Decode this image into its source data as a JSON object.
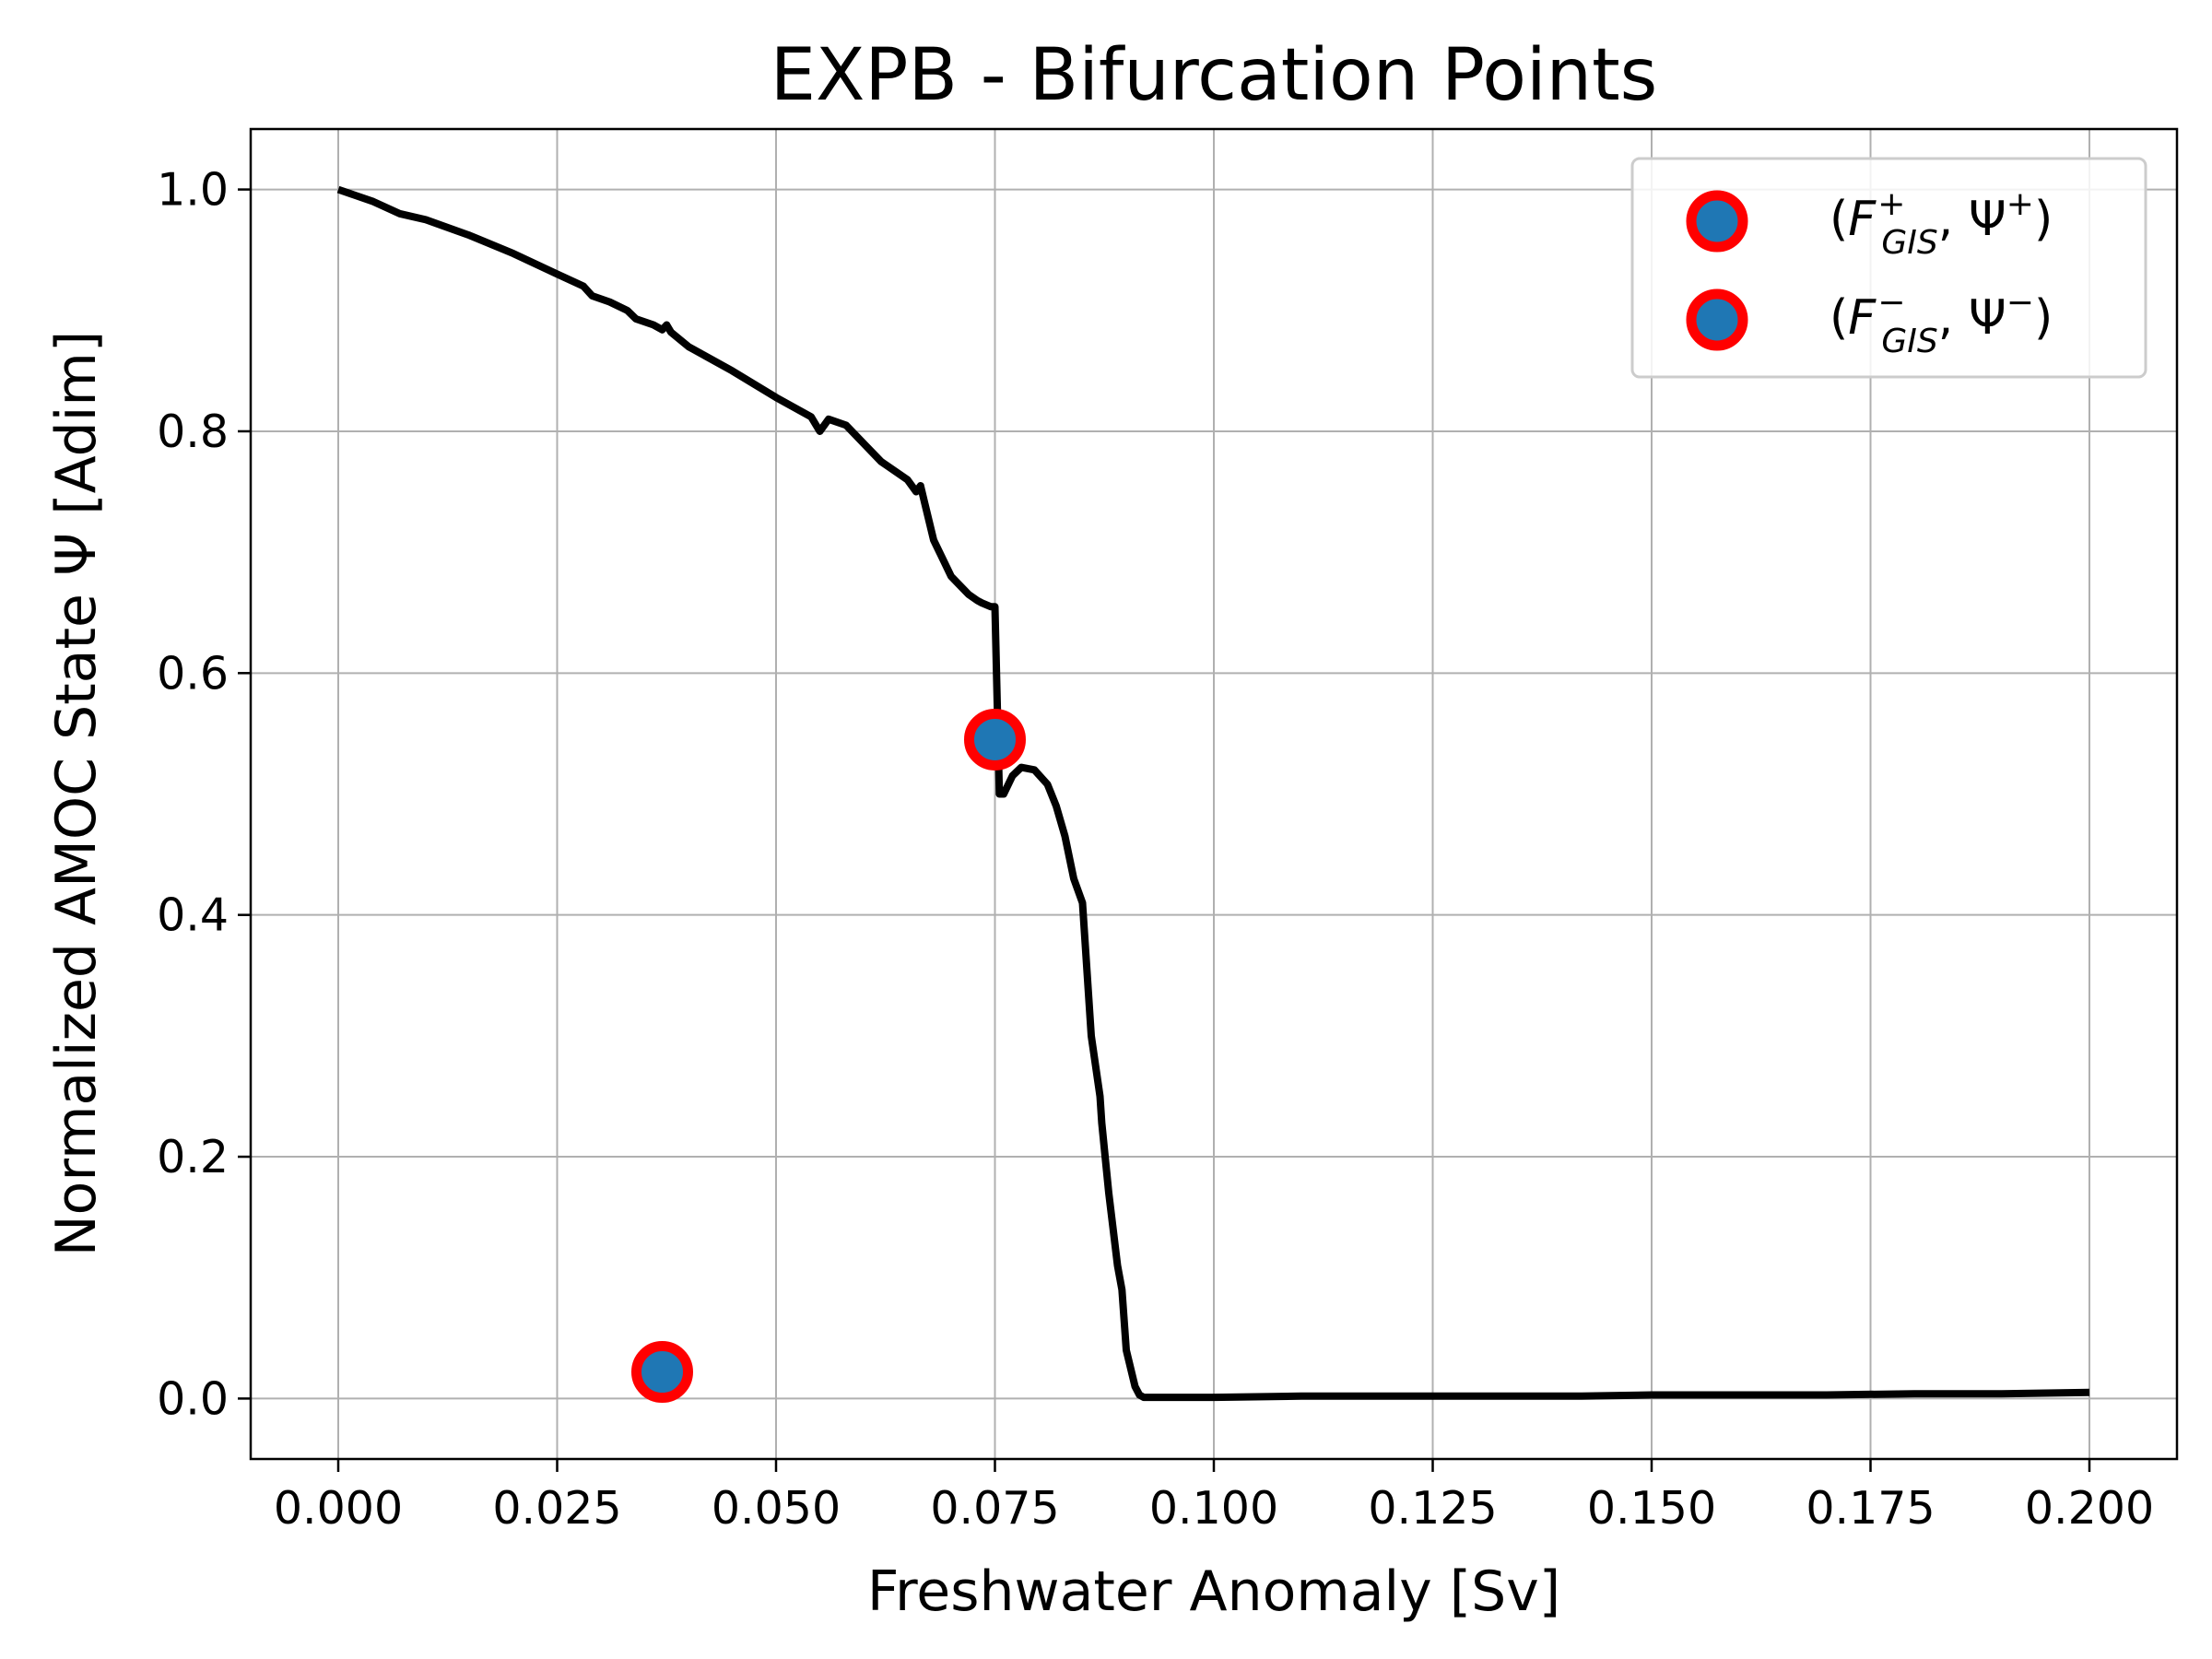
{
  "chart_data": {
    "type": "line",
    "title": "EXPB - Bifurcation Points",
    "xlabel": "Freshwater Anomaly [Sv]",
    "ylabel": "Normalized AMOC State Ψ [Adim]",
    "xlim": [
      -0.01,
      0.21
    ],
    "ylim": [
      -0.05,
      1.05
    ],
    "xticks": [
      "0.000",
      "0.025",
      "0.050",
      "0.075",
      "0.100",
      "0.125",
      "0.150",
      "0.175",
      "0.200"
    ],
    "xtick_values": [
      0.0,
      0.025,
      0.05,
      0.075,
      0.1,
      0.125,
      0.15,
      0.175,
      0.2
    ],
    "yticks": [
      "0.0",
      "0.2",
      "0.4",
      "0.6",
      "0.8",
      "1.0"
    ],
    "ytick_values": [
      0.0,
      0.2,
      0.4,
      0.6,
      0.8,
      1.0
    ],
    "grid": true,
    "legend_position": "top-right",
    "line": {
      "color": "#000000",
      "x": [
        0.0,
        0.004,
        0.007,
        0.01,
        0.015,
        0.02,
        0.025,
        0.028,
        0.029,
        0.031,
        0.033,
        0.034,
        0.036,
        0.037,
        0.0375,
        0.038,
        0.04,
        0.045,
        0.05,
        0.054,
        0.055,
        0.0555,
        0.056,
        0.058,
        0.06,
        0.062,
        0.065,
        0.066,
        0.0665,
        0.067,
        0.068,
        0.07,
        0.072,
        0.073,
        0.0735,
        0.0745,
        0.075,
        0.0755,
        0.076,
        0.077,
        0.078,
        0.0795,
        0.081,
        0.082,
        0.083,
        0.084,
        0.085,
        0.086,
        0.087,
        0.0872,
        0.088,
        0.089,
        0.0895,
        0.09,
        0.091,
        0.0915,
        0.092,
        0.0925,
        0.093,
        0.0935,
        0.094,
        0.1,
        0.11,
        0.12,
        0.13,
        0.14,
        0.142,
        0.15,
        0.16,
        0.17,
        0.18,
        0.19,
        0.2
      ],
      "y": [
        1.0,
        0.99,
        0.98,
        0.975,
        0.962,
        0.947,
        0.93,
        0.92,
        0.912,
        0.907,
        0.9,
        0.893,
        0.888,
        0.884,
        0.888,
        0.882,
        0.87,
        0.85,
        0.828,
        0.812,
        0.8,
        0.805,
        0.81,
        0.805,
        0.79,
        0.775,
        0.76,
        0.75,
        0.755,
        0.74,
        0.71,
        0.68,
        0.665,
        0.66,
        0.658,
        0.655,
        0.655,
        0.5,
        0.5,
        0.515,
        0.522,
        0.52,
        0.508,
        0.49,
        0.465,
        0.43,
        0.41,
        0.3,
        0.25,
        0.228,
        0.17,
        0.11,
        0.09,
        0.04,
        0.01,
        0.003,
        0.001,
        0.001,
        0.001,
        0.001,
        0.001,
        0.001,
        0.002,
        0.002,
        0.002,
        0.002,
        0.002,
        0.003,
        0.003,
        0.003,
        0.004,
        0.004,
        0.005
      ]
    },
    "scatter": [
      {
        "name": "(F⁺GIS, Ψ⁺)",
        "x": 0.075,
        "y": 0.545,
        "face_color": "#1f77b4",
        "edge_color": "#ff0000"
      },
      {
        "name": "(F⁻GIS, Ψ⁻)",
        "x": 0.037,
        "y": 0.022,
        "face_color": "#1f77b4",
        "edge_color": "#ff0000"
      }
    ]
  }
}
